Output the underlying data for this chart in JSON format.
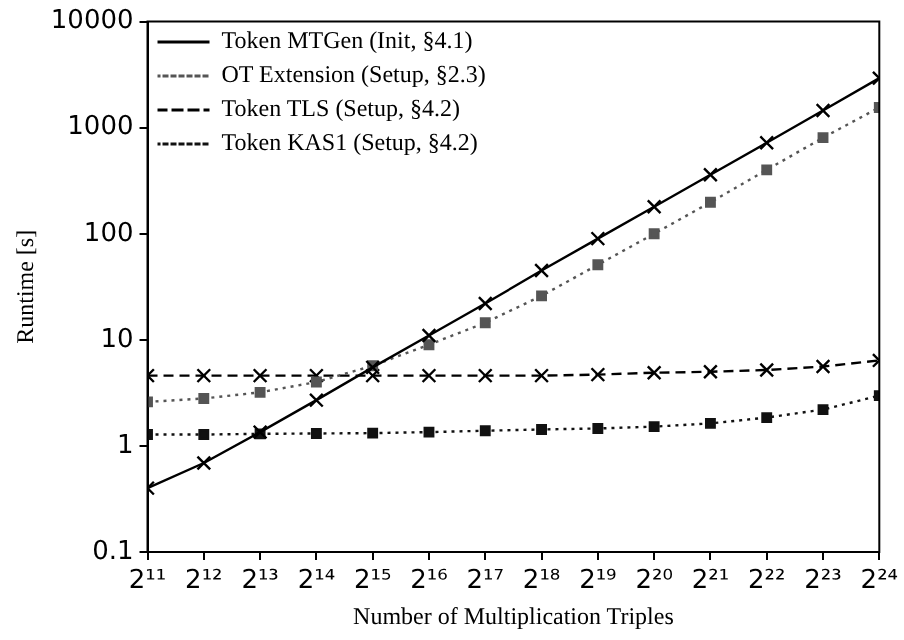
{
  "chart_data": {
    "type": "line",
    "xlabel": "Number of Multiplication Triples",
    "ylabel": "Runtime [s]",
    "x": [
      2048,
      4096,
      8192,
      16384,
      32768,
      65536,
      131072,
      262144,
      524288,
      1048576,
      2097152,
      4194304,
      8388608,
      16777216
    ],
    "log": "xy",
    "grid": false,
    "legend": "top left",
    "xlim": [
      2048,
      16777216
    ],
    "xticks": [
      {
        "value": 2048,
        "label": "2¹¹"
      },
      {
        "value": 4096,
        "label": "2¹²"
      },
      {
        "value": 8192,
        "label": "2¹³"
      },
      {
        "value": 16384,
        "label": "2¹⁴"
      },
      {
        "value": 32768,
        "label": "2¹⁵"
      },
      {
        "value": 65536,
        "label": "2¹⁶"
      },
      {
        "value": 131072,
        "label": "2¹⁷"
      },
      {
        "value": 262144,
        "label": "2¹⁸"
      },
      {
        "value": 524288,
        "label": "2¹⁹"
      },
      {
        "value": 1048576,
        "label": "2²⁰"
      },
      {
        "value": 2097152,
        "label": "2²¹"
      },
      {
        "value": 4194304,
        "label": "2²²"
      },
      {
        "value": 8388608,
        "label": "2²³"
      },
      {
        "value": 16777216,
        "label": "2²⁴"
      }
    ],
    "ylim": [
      0.1,
      10000
    ],
    "yticks": [
      0.1,
      1,
      10,
      100,
      1000,
      10000
    ],
    "series": [
      {
        "name": "Token MTGen (Init, §4.1)",
        "color": "#000000",
        "marker": "cross",
        "line_style": "solid",
        "values": [
          0.4,
          0.69,
          1.35,
          2.7,
          5.5,
          11,
          22,
          45,
          90,
          180,
          360,
          720,
          1450,
          2930
        ]
      },
      {
        "name": "OT Extension (Setup, §2.3)",
        "color": "#555555",
        "marker": "square",
        "line_style": "dotted",
        "values": [
          2.6,
          2.8,
          3.2,
          4.0,
          5.7,
          9,
          14.5,
          26,
          51,
          100,
          198,
          400,
          805,
          1550
        ]
      },
      {
        "name": "Token TLS (Setup, §4.2)",
        "color": "#000000",
        "marker": "cross",
        "line_style": "dashed",
        "values": [
          4.6,
          4.6,
          4.6,
          4.6,
          4.6,
          4.6,
          4.6,
          4.6,
          4.7,
          4.9,
          5.0,
          5.2,
          5.6,
          6.4
        ]
      },
      {
        "name": "Token KAS1 (Setup, §4.2)",
        "color": "#111111",
        "marker": "square",
        "line_style": "dotted",
        "values": [
          1.28,
          1.28,
          1.3,
          1.31,
          1.32,
          1.35,
          1.39,
          1.43,
          1.46,
          1.52,
          1.63,
          1.85,
          2.2,
          2.98
        ]
      }
    ]
  }
}
